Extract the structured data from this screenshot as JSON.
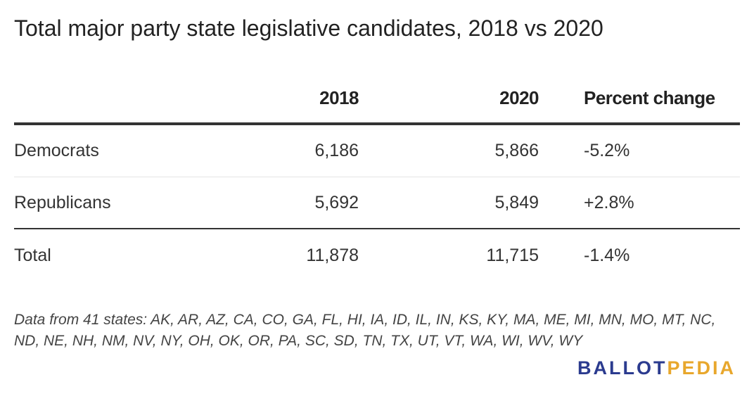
{
  "title": "Total major party state legislative candidates, 2018 vs 2020",
  "chart_data": {
    "type": "table",
    "title": "Total major party state legislative candidates, 2018 vs 2020",
    "columns": [
      "",
      "2018",
      "2020",
      "Percent change"
    ],
    "rows": [
      {
        "label": "Democrats",
        "y2018": "6,186",
        "y2020": "5,866",
        "pct": "-5.2%"
      },
      {
        "label": "Republicans",
        "y2018": "5,692",
        "y2020": "5,849",
        "pct": "+2.8%"
      }
    ],
    "total": {
      "label": "Total",
      "y2018": "11,878",
      "y2020": "11,715",
      "pct": "-1.4%"
    },
    "note": "Data from 41 states: AK, AR, AZ, CA, CO, GA, FL, HI, IA, ID, IL, IN, KS, KY, MA, ME, MI, MN, MO, MT, NC, ND, NE, NH, NM, NV, NY, OH, OK, OR, PA, SC, SD, TN, TX, UT, VT, WA, WI, WV, WY"
  },
  "logo": {
    "part1": "BALLOT",
    "part2": "PEDIA",
    "color1": "#2b3b8f",
    "color2": "#e8a72c"
  }
}
